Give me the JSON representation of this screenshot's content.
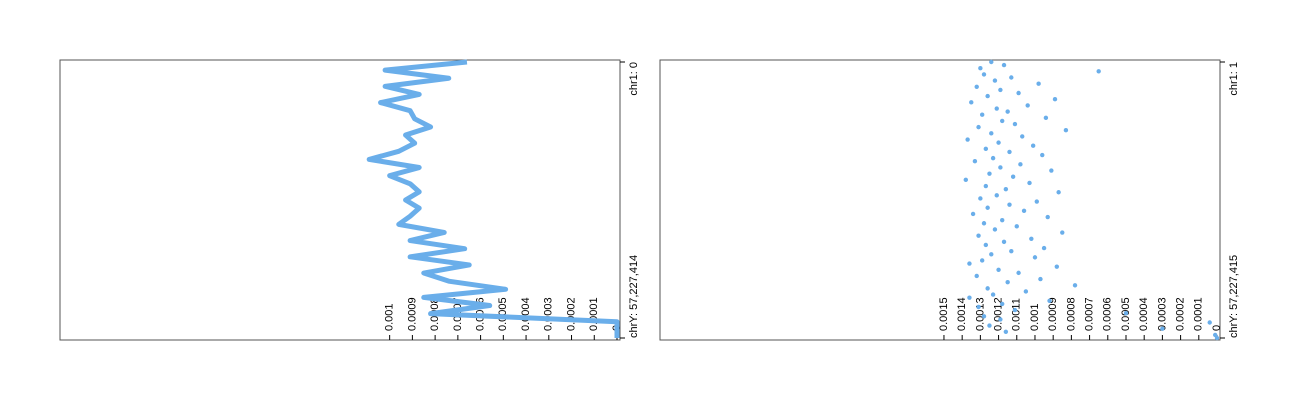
{
  "chart_data": [
    {
      "type": "line",
      "color": "#6aaeea",
      "position_labels": [
        "chr1: 0",
        "chrY: 57,227,414"
      ],
      "values": [
        0.00066,
        0.00102,
        0.00074,
        0.00102,
        0.00087,
        0.00104,
        0.00091,
        0.00089,
        0.00082,
        0.00093,
        0.00089,
        0.00096,
        0.00109,
        0.00087,
        0.001,
        0.00091,
        0.00087,
        0.00093,
        0.00087,
        0.00091,
        0.00096,
        0.00076,
        0.00091,
        0.00067,
        0.00091,
        0.00065,
        0.00085,
        0.00074,
        0.00049,
        0.00085,
        0.00056,
        0.00082,
        0,
        0,
        0
      ],
      "xlim": [
        0,
        0.00245
      ],
      "xticks": [
        0,
        0.0001,
        0.0002,
        0.0003,
        0.0004,
        0.0005,
        0.0006,
        0.0007,
        0.0008,
        0.0009,
        0.001
      ]
    },
    {
      "type": "scatter",
      "color": "#6aaeea",
      "position_labels": [
        "chr1: 1",
        "chrY: 57,227,415"
      ],
      "values": [
        0.00124,
        0.00117,
        0.0013,
        0.00065,
        0.00128,
        0.00113,
        0.00122,
        0.00098,
        0.00132,
        0.00119,
        0.00109,
        0.00126,
        0.00089,
        0.00135,
        0.00104,
        0.00121,
        0.00115,
        0.00129,
        0.00094,
        0.00118,
        0.00111,
        0.00131,
        0.00083,
        0.00124,
        0.00107,
        0.00137,
        0.0012,
        0.00101,
        0.00127,
        0.00114,
        0.00096,
        0.00123,
        0.00133,
        0.00108,
        0.00119,
        0.00091,
        0.00125,
        0.00112,
        0.00138,
        0.00103,
        0.00127,
        0.00116,
        0.00087,
        0.00121,
        0.0013,
        0.00099,
        0.00114,
        0.00126,
        0.00106,
        0.00134,
        0.00093,
        0.00118,
        0.00128,
        0.0011,
        0.00122,
        0.00085,
        0.00131,
        0.00102,
        0.00117,
        0.00127,
        0.00095,
        0.00113,
        0.00124,
        0.001,
        0.00129,
        0.00136,
        0.00088,
        0.0012,
        0.00109,
        0.00132,
        0.00097,
        0.00115,
        0.00078,
        0.00126,
        0.00105,
        0.00123,
        0.00136,
        0.00092,
        0.00118,
        0.00131,
        0.00111,
        0.0005,
        0.00128,
        0.00119,
        4e-05,
        0.00125,
        0.0003,
        0.00116,
        1e-05,
        0
      ],
      "xlim": [
        0,
        0.00306
      ],
      "xticks": [
        0,
        0.0001,
        0.0002,
        0.0003,
        0.0004,
        0.0005,
        0.0006,
        0.0007,
        0.0008,
        0.0009,
        0.001,
        0.0011,
        0.0012,
        0.0013,
        0.0014,
        0.0015
      ]
    }
  ]
}
